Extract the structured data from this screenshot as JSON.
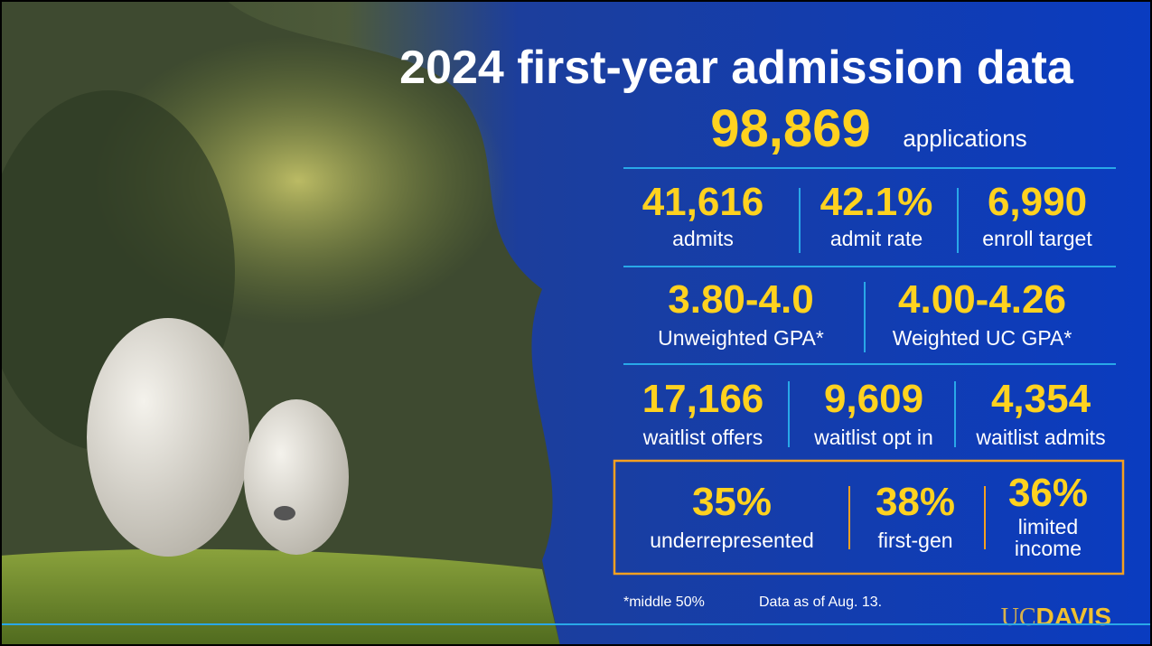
{
  "header": {
    "title": "2024 first-year admission data"
  },
  "applications": {
    "value": "98,869",
    "label": "applications"
  },
  "rows": [
    [
      {
        "value": "41,616",
        "label": "admits"
      },
      {
        "value": "42.1%",
        "label": "admit rate"
      },
      {
        "value": "6,990",
        "label": "enroll target"
      }
    ],
    [
      {
        "value": "3.80-4.0",
        "label": "Unweighted GPA*"
      },
      {
        "value": "4.00-4.26",
        "label": "Weighted UC GPA*"
      }
    ],
    [
      {
        "value": "17,166",
        "label": "waitlist offers"
      },
      {
        "value": "9,609",
        "label": "waitlist opt in"
      },
      {
        "value": "4,354",
        "label": "waitlist admits"
      }
    ]
  ],
  "diversity": [
    {
      "value": "35%",
      "label": [
        "underrepresented"
      ]
    },
    {
      "value": "38%",
      "label": [
        "first-gen"
      ]
    },
    {
      "value": "36%",
      "label": [
        "limited",
        "income"
      ]
    }
  ],
  "footnotes": [
    "*middle 50%",
    "Data as of Aug. 13."
  ],
  "logo": {
    "uc": "UC",
    "davis": "DAVIS"
  }
}
